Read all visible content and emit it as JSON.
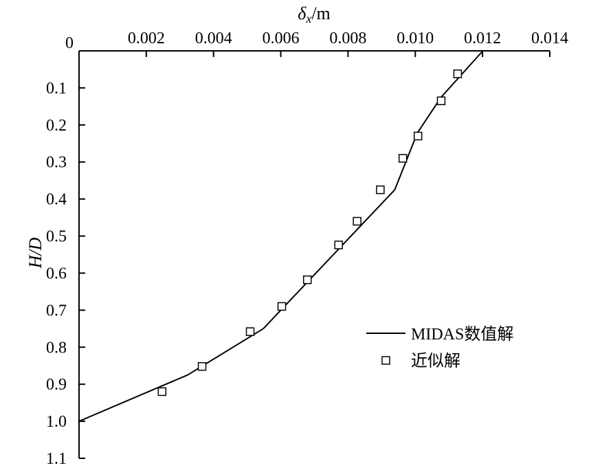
{
  "chart_data": {
    "type": "line",
    "x_axis": {
      "label_main": "δ",
      "label_sub": "x",
      "label_suffix": "/m",
      "position": "top",
      "range": [
        0,
        0.014
      ],
      "ticks": [
        0.002,
        0.004,
        0.006,
        0.008,
        0.01,
        0.012,
        0.014
      ],
      "tick_labels": [
        "0.002",
        "0.004",
        "0.006",
        "0.008",
        "0.010",
        "0.012",
        "0.014"
      ],
      "origin_label": "0"
    },
    "y_axis": {
      "label": "H/D",
      "inverted": true,
      "range": [
        0,
        1.1
      ],
      "ticks": [
        0.1,
        0.2,
        0.3,
        0.4,
        0.5,
        0.6,
        0.7,
        0.8,
        0.9,
        1.0,
        1.1
      ],
      "tick_labels": [
        "0.1",
        "0.2",
        "0.3",
        "0.4",
        "0.5",
        "0.6",
        "0.7",
        "0.8",
        "0.9",
        "1.0",
        "1.1"
      ]
    },
    "grid": false,
    "legend_position": "right",
    "series": [
      {
        "name": "MIDAS数值解",
        "style": "line",
        "color": "#000000",
        "points": [
          [
            0.01201,
            0.0
          ],
          [
            0.01077,
            0.125
          ],
          [
            0.01006,
            0.222
          ],
          [
            0.00939,
            0.375
          ],
          [
            0.00548,
            0.75
          ],
          [
            0.00323,
            0.875
          ],
          [
            0.0,
            1.0
          ]
        ]
      },
      {
        "name": "近似解",
        "style": "marker",
        "marker": "open-square",
        "color": "#000000",
        "points": [
          [
            0.01126,
            0.062
          ],
          [
            0.01077,
            0.135
          ],
          [
            0.01008,
            0.23
          ],
          [
            0.00963,
            0.29
          ],
          [
            0.00896,
            0.375
          ],
          [
            0.00827,
            0.46
          ],
          [
            0.00772,
            0.524
          ],
          [
            0.00679,
            0.618
          ],
          [
            0.00603,
            0.69
          ],
          [
            0.00509,
            0.758
          ],
          [
            0.00366,
            0.852
          ],
          [
            0.00247,
            0.92
          ]
        ]
      }
    ]
  }
}
